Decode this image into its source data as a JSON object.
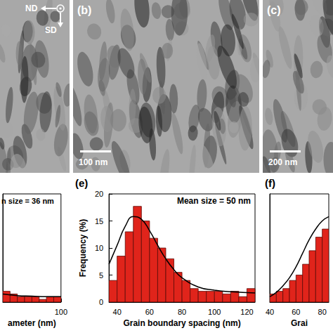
{
  "images": [
    {
      "directions": [
        "ND",
        "SD"
      ]
    },
    {
      "label": "(b)",
      "scale_bar": "100 nm"
    },
    {
      "label": "(c)",
      "scale_bar": "200 nm"
    }
  ],
  "chart_data": [
    {
      "type": "histogram",
      "annotation": "n size = 36 nm",
      "x_label": "ameter (nm)",
      "bins": [
        60,
        65,
        70,
        75,
        80,
        85,
        90,
        95,
        100
      ],
      "values": [
        2,
        1.5,
        1,
        1,
        1,
        0.5,
        1,
        1
      ],
      "color": "#e0241b",
      "fit": {
        "x": [
          60,
          70,
          80,
          90,
          100
        ],
        "y": [
          1.5,
          1.2,
          1.1,
          1.0,
          1.0
        ],
        "color": "#000000"
      },
      "xlim": [
        60,
        100
      ],
      "xticks": [
        100
      ],
      "ylim": [
        0,
        20
      ],
      "tick_labels": "x",
      "grid": false
    },
    {
      "type": "histogram",
      "panel_label": "(e)",
      "annotation": "Mean size = 50 nm",
      "x_label": "Grain boundary spacing (nm)",
      "y_label": "Frequency (%)",
      "bins": [
        35,
        40,
        45,
        50,
        55,
        60,
        65,
        70,
        75,
        80,
        85,
        90,
        95,
        100,
        105,
        110,
        115,
        120,
        125
      ],
      "values": [
        4,
        8.5,
        13,
        17.7,
        15,
        11.8,
        10,
        8,
        5.5,
        4,
        2.5,
        2,
        2,
        2,
        1.5,
        2,
        1,
        2.5
      ],
      "color": "#e0241b",
      "fit": {
        "x": [
          35,
          40,
          45,
          50,
          55,
          60,
          65,
          70,
          75,
          80,
          90,
          100,
          110,
          125
        ],
        "y": [
          7,
          10.5,
          14,
          15.8,
          15.3,
          13.2,
          10.5,
          8,
          6,
          4.5,
          2.8,
          2.2,
          1.9,
          1.7
        ],
        "color": "#000000"
      },
      "xlim": [
        35,
        125
      ],
      "xticks": [
        40,
        60,
        80,
        100,
        120
      ],
      "ylim": [
        0,
        20
      ],
      "yticks": [
        0,
        5,
        10,
        15,
        20
      ],
      "grid": false
    },
    {
      "type": "histogram",
      "panel_label": "(f)",
      "x_label": "Grai",
      "bins": [
        40,
        45,
        50,
        55,
        60,
        65,
        70,
        75,
        80,
        85
      ],
      "values": [
        1.5,
        2,
        2.5,
        4,
        5,
        7,
        9.5,
        12,
        13.5
      ],
      "color": "#e0241b",
      "fit": {
        "x": [
          40,
          45,
          50,
          55,
          60,
          65,
          70,
          75,
          80,
          85
        ],
        "y": [
          1,
          1.8,
          3,
          4.5,
          6.5,
          9,
          11.5,
          13.5,
          15,
          15.8
        ],
        "color": "#000000"
      },
      "xlim": [
        40,
        85
      ],
      "xticks": [
        40,
        60,
        80
      ],
      "ylim": [
        0,
        20
      ],
      "tick_labels": "x",
      "grid": false
    }
  ]
}
